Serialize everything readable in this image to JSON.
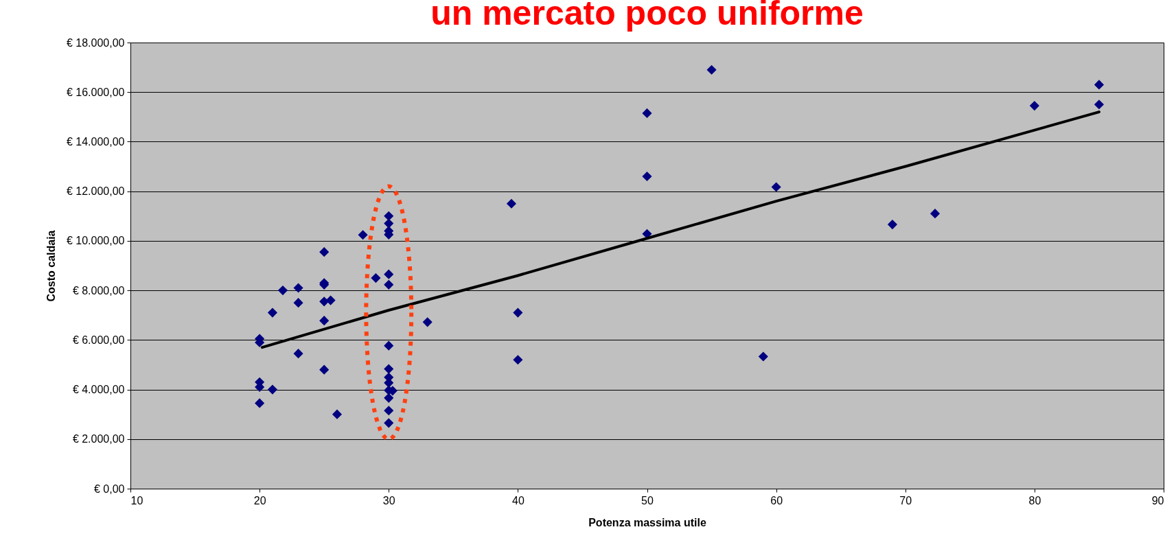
{
  "chart_data": {
    "type": "scatter",
    "title": "un mercato poco uniforme",
    "xlabel": "Potenza massima utile",
    "ylabel": "Costo caldaia",
    "xlim": [
      10,
      90
    ],
    "xticks": [
      10,
      20,
      30,
      40,
      50,
      60,
      70,
      80,
      90
    ],
    "ylim": [
      0,
      18000
    ],
    "yticks": [
      {
        "value": 0,
        "label": "€ 0,00"
      },
      {
        "value": 2000,
        "label": "€ 2.000,00"
      },
      {
        "value": 4000,
        "label": "€ 4.000,00"
      },
      {
        "value": 6000,
        "label": "€ 6.000,00"
      },
      {
        "value": 8000,
        "label": "€ 8.000,00"
      },
      {
        "value": 10000,
        "label": "€ 10.000,00"
      },
      {
        "value": 12000,
        "label": "€ 12.000,00"
      },
      {
        "value": 14000,
        "label": "€ 14.000,00"
      },
      {
        "value": 16000,
        "label": "€ 16.000,00"
      },
      {
        "value": 18000,
        "label": "€ 18.000,00"
      }
    ],
    "grid": "y",
    "marker": "diamond",
    "series": [
      {
        "color": "#000080",
        "x": [
          20,
          20,
          20,
          20,
          20,
          21,
          21,
          21.8,
          23,
          23,
          23,
          25,
          25,
          25,
          25,
          25.5,
          25,
          25,
          26,
          28,
          29,
          30,
          30,
          30,
          30,
          30,
          30,
          30,
          30,
          30,
          30,
          30,
          30,
          30,
          30,
          30.3,
          33,
          39.5,
          40,
          40,
          50,
          50,
          50,
          55,
          59,
          60,
          69,
          72.3,
          80,
          85,
          85
        ],
        "values": [
          6050,
          5900,
          4300,
          4100,
          3450,
          7100,
          4000,
          8000,
          8100,
          7500,
          5450,
          9550,
          8300,
          8230,
          7550,
          7600,
          6780,
          4800,
          3000,
          10240,
          8500,
          11000,
          10700,
          10400,
          10250,
          8650,
          8230,
          5770,
          4830,
          4490,
          4270,
          3970,
          3660,
          3150,
          2650,
          3950,
          6720,
          11500,
          7100,
          5200,
          15150,
          12600,
          10280,
          16900,
          5330,
          12170,
          10660,
          11100,
          15450,
          16300,
          15500
        ]
      },
      {
        "type": "line",
        "marker": "none",
        "color": "#000000",
        "x": [
          20.2,
          30,
          40,
          50,
          60,
          70,
          85
        ],
        "values": [
          5700,
          7200,
          8600,
          10100,
          11600,
          13000,
          15200
        ]
      }
    ]
  }
}
